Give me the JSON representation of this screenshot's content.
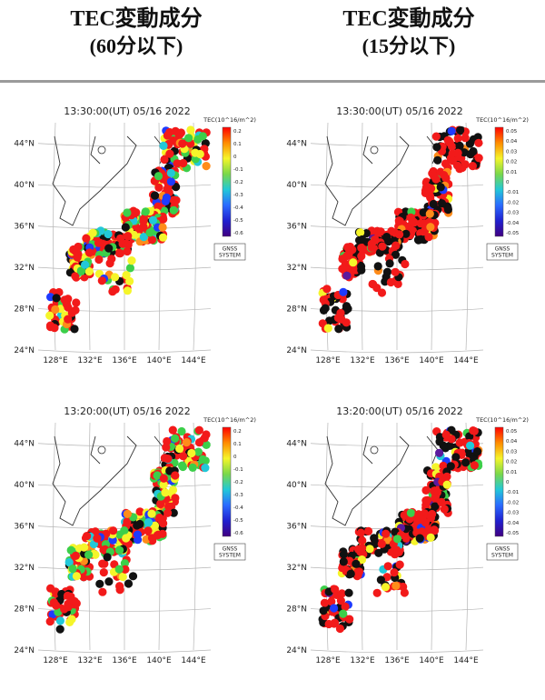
{
  "headers": [
    {
      "line1": "TEC変動成分",
      "line2": "(60分以下)"
    },
    {
      "line1": "TEC変動成分",
      "line2": "(15分以下)"
    }
  ],
  "colors": {
    "red": "#f21a1a",
    "black": "#111111",
    "orange": "#ff8c1a",
    "yellow": "#f5f52a",
    "green": "#3ccf4a",
    "cyan": "#22c8d8",
    "blue": "#1f3bff",
    "purple": "#5b1a9e"
  },
  "chart_data": [
    {
      "type": "scatter",
      "title": "13:30:00(UT) 05/16 2022",
      "colorbar_label": "TEC(10^16/m^2)",
      "colorbar_ticks": [
        "0.2",
        "0.1",
        "0",
        "-0.1",
        "-0.2",
        "-0.3",
        "-0.4",
        "-0.5",
        "-0.6"
      ],
      "legend_box": [
        "GNSS",
        "SYSTEM"
      ],
      "lat_ticks": [
        "44°N",
        "40°N",
        "36°N",
        "32°N",
        "28°N",
        "24°N"
      ],
      "lon_ticks": [
        "128°E",
        "132°E",
        "136°E",
        "140°E",
        "144°E"
      ],
      "xlim": [
        126,
        146
      ],
      "ylim": [
        24,
        46
      ],
      "mix": {
        "red": 0.48,
        "black": 0.14,
        "orange": 0.05,
        "yellow": 0.1,
        "green": 0.13,
        "cyan": 0.07,
        "blue": 0.03
      }
    },
    {
      "type": "scatter",
      "title": "13:30:00(UT) 05/16 2022",
      "colorbar_label": "TEC(10^16/m^2)",
      "colorbar_ticks": [
        "0.05",
        "0.04",
        "0.03",
        "0.02",
        "0.01",
        "0",
        "-0.01",
        "-0.02",
        "-0.03",
        "-0.04",
        "-0.05"
      ],
      "legend_box": [
        "GNSS",
        "SYSTEM"
      ],
      "lat_ticks": [
        "44°N",
        "40°N",
        "36°N",
        "32°N",
        "28°N",
        "24°N"
      ],
      "lon_ticks": [
        "128°E",
        "132°E",
        "136°E",
        "140°E",
        "144°E"
      ],
      "xlim": [
        126,
        146
      ],
      "ylim": [
        24,
        46
      ],
      "mix": {
        "red": 0.5,
        "black": 0.38,
        "orange": 0.04,
        "yellow": 0.03,
        "green": 0.02,
        "blue": 0.02,
        "purple": 0.01
      }
    },
    {
      "type": "scatter",
      "title": "13:20:00(UT) 05/16 2022",
      "colorbar_label": "TEC(10^16/m^2)",
      "colorbar_ticks": [
        "0.2",
        "0.1",
        "0",
        "-0.1",
        "-0.2",
        "-0.3",
        "-0.4",
        "-0.5",
        "-0.6"
      ],
      "legend_box": [
        "GNSS",
        "SYSTEM"
      ],
      "lat_ticks": [
        "44°N",
        "40°N",
        "36°N",
        "32°N",
        "28°N",
        "24°N"
      ],
      "lon_ticks": [
        "128°E",
        "132°E",
        "136°E",
        "140°E",
        "144°E"
      ],
      "xlim": [
        126,
        146
      ],
      "ylim": [
        24,
        46
      ],
      "mix": {
        "red": 0.44,
        "black": 0.1,
        "orange": 0.05,
        "yellow": 0.12,
        "green": 0.15,
        "cyan": 0.08,
        "blue": 0.06
      }
    },
    {
      "type": "scatter",
      "title": "13:20:00(UT) 05/16 2022",
      "colorbar_label": "TEC(10^16/m^2)",
      "colorbar_ticks": [
        "0.05",
        "0.04",
        "0.03",
        "0.02",
        "0.01",
        "0",
        "-0.01",
        "-0.02",
        "-0.03",
        "-0.04",
        "-0.05"
      ],
      "legend_box": [
        "GNSS",
        "SYSTEM"
      ],
      "lat_ticks": [
        "44°N",
        "40°N",
        "36°N",
        "32°N",
        "28°N",
        "24°N"
      ],
      "lon_ticks": [
        "128°E",
        "132°E",
        "136°E",
        "140°E",
        "144°E"
      ],
      "xlim": [
        126,
        146
      ],
      "ylim": [
        24,
        46
      ],
      "mix": {
        "red": 0.5,
        "black": 0.3,
        "orange": 0.04,
        "yellow": 0.04,
        "green": 0.05,
        "cyan": 0.02,
        "blue": 0.04,
        "purple": 0.01
      }
    }
  ]
}
